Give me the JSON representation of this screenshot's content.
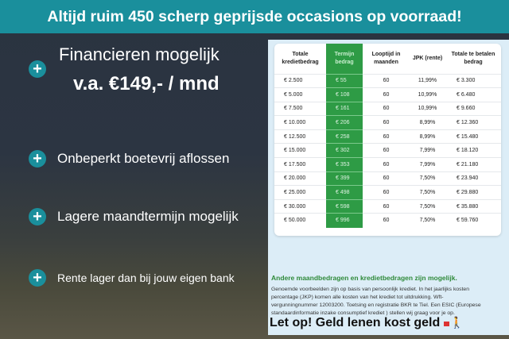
{
  "banner": {
    "title": "Altijd ruim 450 scherp geprijsde occasions op voorraad!"
  },
  "benefits": [
    {
      "line1": "Financieren mogelijk",
      "line2": "v.a. €149,- / mnd"
    },
    {
      "line1": "Onbeperkt boetevrij aflossen"
    },
    {
      "line1": "Lagere maandtermijn mogelijk"
    },
    {
      "line1": "Rente lager dan bij jouw eigen bank"
    }
  ],
  "icons": {
    "benefit": "plus-circle-icon",
    "warning": "person-walking-ball-chain-icon"
  },
  "colors": {
    "accent": "#1a8f9c",
    "green": "#2e9b45"
  },
  "table": {
    "headers": [
      "Totale kredietbedrag",
      "Termijn bedrag",
      "Looptijd in maanden",
      "JPK (rente)",
      "Totale te betalen bedrag"
    ],
    "rows": [
      [
        "€ 2.500",
        "€ 55",
        "60",
        "11,99%",
        "€ 3.300"
      ],
      [
        "€ 5.000",
        "€ 108",
        "60",
        "10,99%",
        "€ 6.480"
      ],
      [
        "€ 7.500",
        "€ 161",
        "60",
        "10,99%",
        "€ 9.660"
      ],
      [
        "€ 10.000",
        "€ 206",
        "60",
        "8,99%",
        "€ 12.360"
      ],
      [
        "€ 12.500",
        "€ 258",
        "60",
        "8,99%",
        "€ 15.480"
      ],
      [
        "€ 15.000",
        "€ 302",
        "60",
        "7,99%",
        "€ 18.120"
      ],
      [
        "€ 17.500",
        "€ 353",
        "60",
        "7,99%",
        "€ 21.180"
      ],
      [
        "€ 20.000",
        "€ 399",
        "60",
        "7,50%",
        "€ 23.940"
      ],
      [
        "€ 25.000",
        "€ 498",
        "60",
        "7,50%",
        "€ 29.880"
      ],
      [
        "€ 30.000",
        "€ 598",
        "60",
        "7,50%",
        "€ 35.880"
      ],
      [
        "€ 50.000",
        "€ 996",
        "60",
        "7,50%",
        "€ 59.760"
      ]
    ]
  },
  "subheading": "Andere maandbedragen en kredietbedragen zijn mogelijk.",
  "disclaimer": "Genoemde voorbeelden zijn op basis van persoonlijk krediet. In het jaarlijks kosten percentage (JKP) komen alle kosten van het krediet tot uitdrukking. Wft-vergunningnummer 12003200. Toetsing en registratie BKR te Tiel. Een ESIC (Europese standaardinformatie inzake consumptief krediet ) stellen wij graag voor je op.",
  "warning": "Let op! Geld lenen kost geld"
}
